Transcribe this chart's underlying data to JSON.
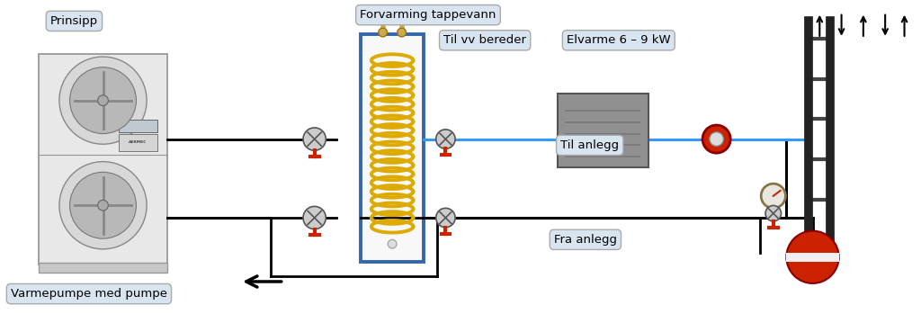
{
  "bg_color": "#ffffff",
  "labels": {
    "prinsipp": "Prinsipp",
    "forvarming": "Forvarming tappevann",
    "til_vv": "Til vv bereder",
    "elvarme": "Elvarme 6 – 9 kW",
    "til_anlegg": "Til anlegg",
    "fra_anlegg": "Fra anlegg",
    "varmepumpe": "Varmepumpe med pumpe"
  },
  "colors": {
    "bg": "#ffffff",
    "box_fill": "#d8e4f0",
    "box_edge": "#aaaaaa",
    "text": "#000000",
    "red_pipe": "#cc2200",
    "blue_pipe": "#3399ff",
    "black": "#000000",
    "heat_pump_body": "#e8e8e8",
    "heat_pump_edge": "#999999",
    "tank_border": "#3366aa",
    "tank_fill": "#f8f8f8",
    "coil": "#ddaa00",
    "gray_dark": "#555555",
    "gray_mid": "#888888",
    "gray_light": "#cccccc",
    "fan_outer": "#bbbbbb",
    "fan_inner": "#999999",
    "component_gray": "#aaaaaa",
    "red_vessel": "#cc2200",
    "manifold": "#222222"
  }
}
